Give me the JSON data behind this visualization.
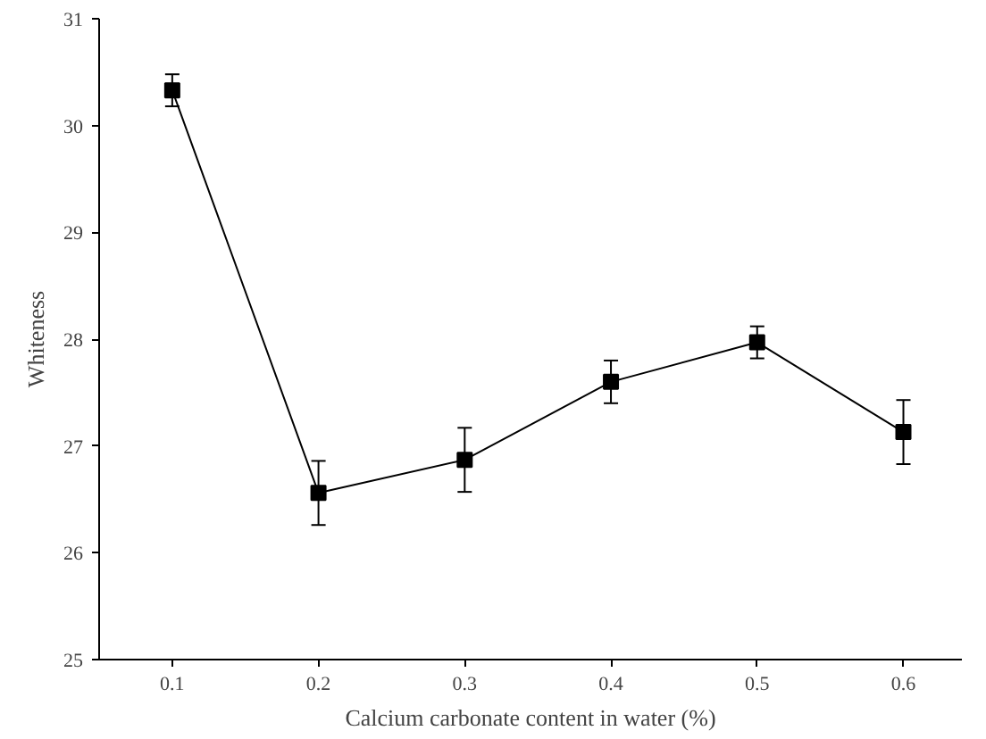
{
  "chart_data": {
    "type": "line",
    "xlabel": "Calcium carbonate content in water (%)",
    "ylabel": "Whiteness",
    "x": [
      0.1,
      0.2,
      0.3,
      0.4,
      0.5,
      0.6
    ],
    "series": [
      {
        "color": "#000000",
        "values": [
          30.33,
          26.56,
          26.87,
          27.6,
          27.97,
          27.13
        ],
        "errors": [
          0.15,
          0.3,
          0.3,
          0.2,
          0.15,
          0.3
        ]
      }
    ],
    "xlim": [
      0.05,
      0.64
    ],
    "xticks": [
      0.1,
      0.2,
      0.3,
      0.4,
      0.5,
      0.6
    ],
    "ylim": [
      25,
      31
    ],
    "yticks": [
      25,
      26,
      27,
      28,
      29,
      30,
      31
    ],
    "marker": "square",
    "line_style": "solid",
    "grid": false
  }
}
